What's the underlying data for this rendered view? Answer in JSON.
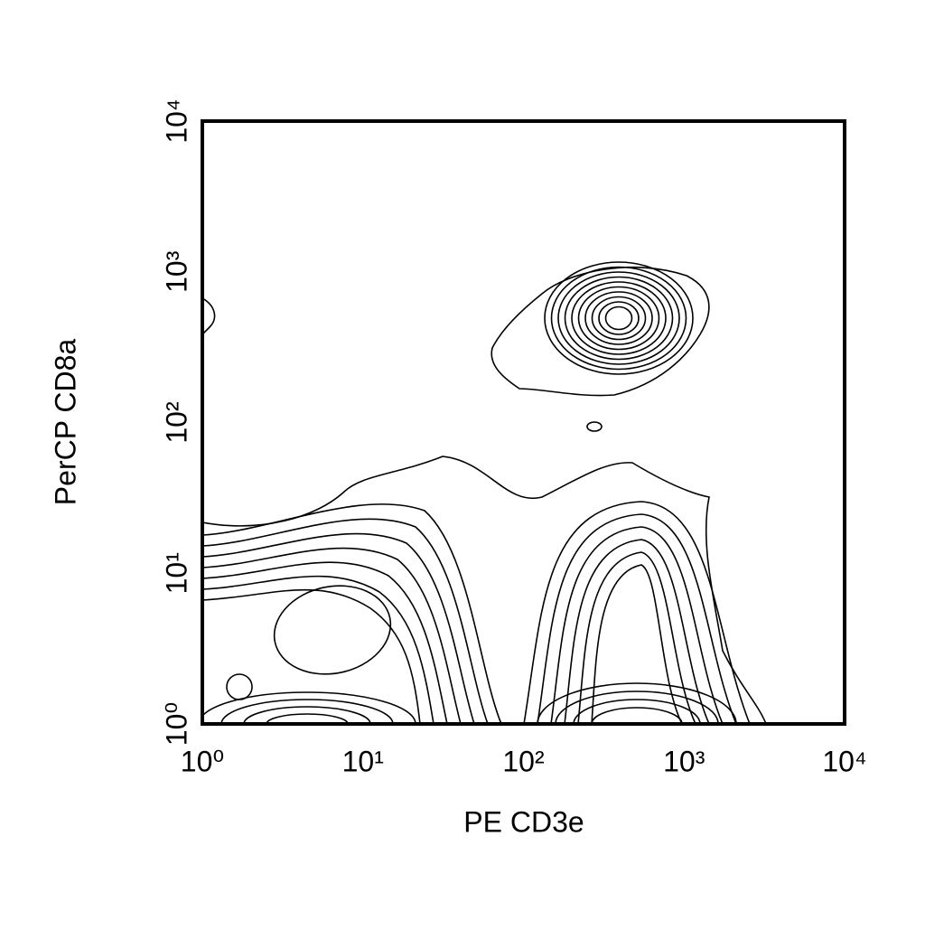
{
  "chart_data": {
    "type": "contour",
    "x_label": "PE CD3e",
    "y_label": "PerCP CD8a",
    "x_log": true,
    "y_log": true,
    "grid": false,
    "xlim": [
      1,
      10000
    ],
    "ylim": [
      1,
      10000
    ],
    "xticks": [
      {
        "value": 1,
        "label": "10⁰"
      },
      {
        "value": 10,
        "label": "10¹"
      },
      {
        "value": 100,
        "label": "10²"
      },
      {
        "value": 1000,
        "label": "10³"
      },
      {
        "value": 10000,
        "label": "10⁴"
      }
    ],
    "yticks": [
      {
        "value": 1,
        "label": "10⁰"
      },
      {
        "value": 10,
        "label": "10¹"
      },
      {
        "value": 100,
        "label": "10²"
      },
      {
        "value": 1000,
        "label": "10³"
      },
      {
        "value": 10000,
        "label": "10⁴"
      }
    ]
  }
}
